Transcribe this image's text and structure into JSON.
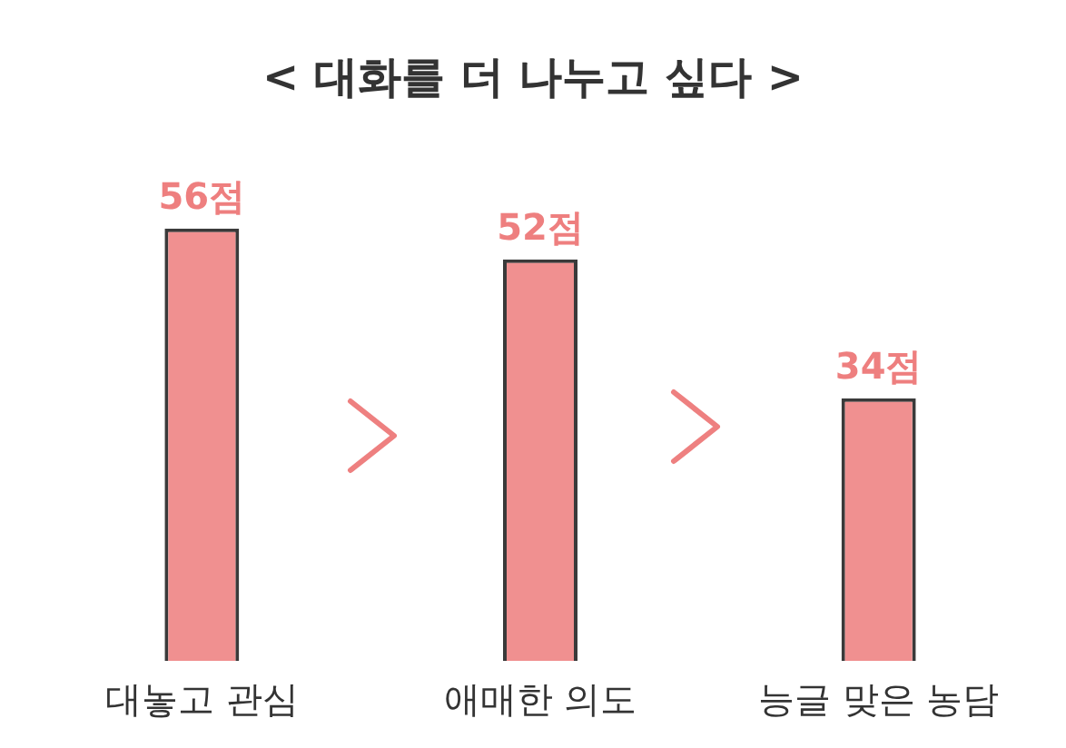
{
  "chart_data": {
    "type": "bar",
    "title": "< 대화를 더 나누고 싶다 >",
    "categories": [
      "대놓고 관심",
      "애매한 의도",
      "능글 맞은 농담"
    ],
    "values": [
      56,
      52,
      34
    ],
    "value_labels": [
      "56점",
      "52점",
      "34점"
    ],
    "color": "#f09090",
    "relative": false,
    "grid": false,
    "legend": false
  }
}
